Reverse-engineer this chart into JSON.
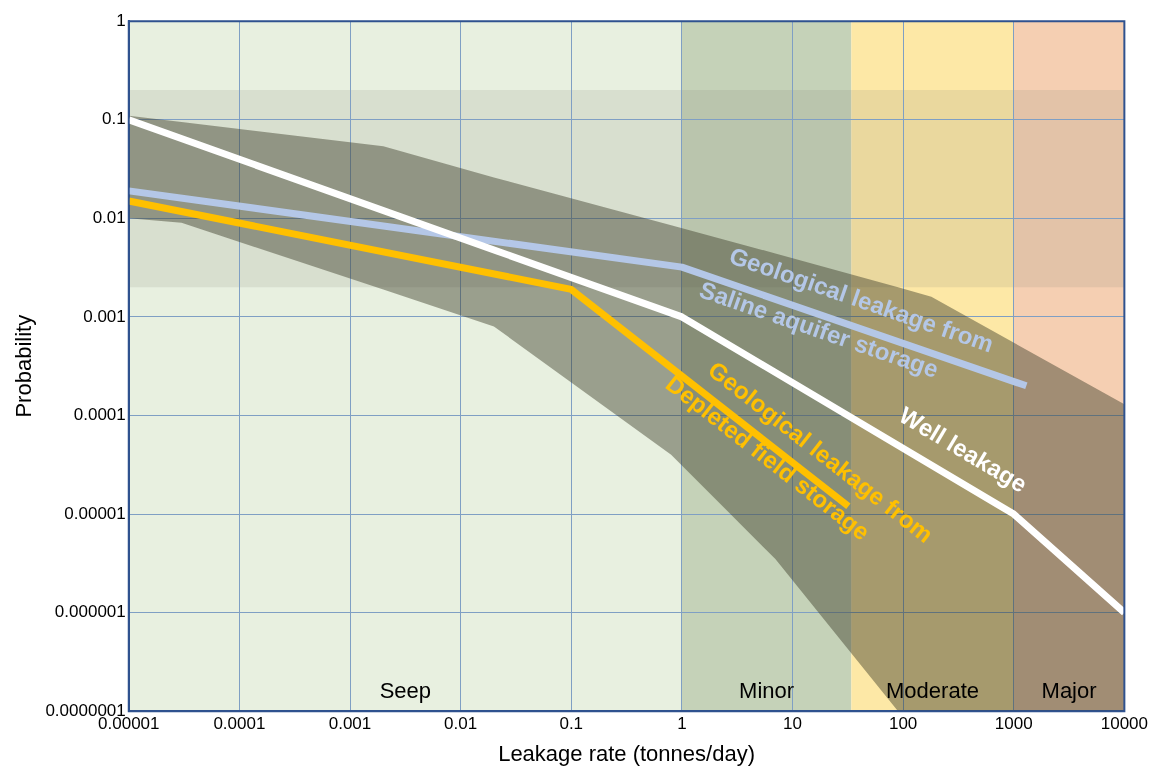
{
  "chart_data": {
    "type": "line",
    "xlabel": "Leakage rate (tonnes/day)",
    "ylabel": "Probability",
    "log": "xy",
    "grid": true,
    "xlim": [
      1e-05,
      10000
    ],
    "xticks": [
      {
        "value": 1e-05,
        "label": "0.00001"
      },
      0.0001,
      0.001,
      0.01,
      0.1,
      1,
      10,
      100,
      1000,
      10000
    ],
    "ylim": [
      1e-07,
      1
    ],
    "yticks": [
      {
        "value": 1e-07,
        "label": "0.0000001"
      },
      {
        "value": 1e-06,
        "label": "0.000001"
      },
      {
        "value": 1e-05,
        "label": "0.00001"
      },
      0.0001,
      0.001,
      0.01,
      0.1,
      1
    ],
    "bands": [
      {
        "axis": "x",
        "from": 1e-05,
        "to": 1,
        "label": "Seep",
        "color": "#e8f0e0"
      },
      {
        "axis": "x",
        "from": 1,
        "to": 34,
        "label": "Minor",
        "color": "#c5d2b8"
      },
      {
        "axis": "x",
        "from": 34,
        "to": 1000,
        "label": "Moderate",
        "color": "#fde8a6"
      },
      {
        "axis": "x",
        "from": 1000,
        "to": 10000,
        "label": "Major",
        "color": "#f5cfb2"
      },
      {
        "axis": "y",
        "from": 0.002,
        "to": 0.2,
        "color": "#808070"
      }
    ],
    "series": [
      {
        "type": "area",
        "color": "#3c3c28",
        "x": [
          1e-05,
          3e-05,
          0.002,
          0.02,
          0.8,
          7,
          90,
          180,
          10000
        ],
        "values": [
          null,
          null,
          null,
          null,
          null,
          null,
          null,
          null,
          null
        ],
        "upper": [
          0.11,
          0.095,
          0.054,
          0.026,
          0.0085,
          0.0044,
          0.002,
          0.0016,
          0.00013
        ],
        "lower": [
          0.01,
          0.009,
          0.0019,
          0.0008,
          4e-05,
          3.5e-06,
          1e-07,
          1e-07,
          1e-07
        ]
      },
      {
        "name": "Well leakage",
        "color": "#ffffff",
        "x": [
          1e-05,
          1,
          1000,
          10000
        ],
        "values": [
          0.1,
          0.001,
          1e-05,
          1e-06
        ]
      },
      {
        "name": "Geological leakage from\nSaline aquifer storage",
        "color": "#b4c7e7",
        "x": [
          1e-05,
          1,
          1300
        ],
        "values": [
          0.019,
          0.0032,
          0.0002
        ]
      },
      {
        "name": "Geological leakage from\nDepleted field storage",
        "color": "#ffc000",
        "x": [
          1e-05,
          0.1,
          32
        ],
        "values": [
          0.015,
          0.0019,
          1.2e-05
        ]
      }
    ]
  }
}
